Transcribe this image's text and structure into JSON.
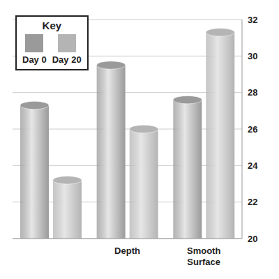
{
  "chart_data": {
    "type": "bar",
    "categories": [
      null,
      "Depth",
      "Smooth Surface"
    ],
    "series": [
      {
        "name": "Day 0",
        "color": "#9a9a9a",
        "values": [
          27.3,
          29.5,
          27.6
        ]
      },
      {
        "name": "Day 20",
        "color": "#b4b4b4",
        "values": [
          23.2,
          26,
          31.3
        ]
      }
    ],
    "ylim": [
      20,
      32
    ],
    "yticks": [
      20,
      22,
      24,
      26,
      28,
      30,
      32
    ],
    "grid": true,
    "legend": "upper left",
    "legend_title": "Key"
  }
}
